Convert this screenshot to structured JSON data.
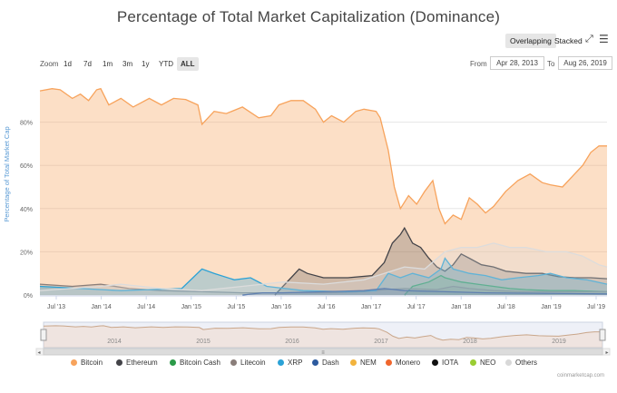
{
  "title": "Percentage of Total Market Capitalization (Dominance)",
  "modes": {
    "overlapping": "Overlapping",
    "stacked": "Stacked"
  },
  "icons": {
    "fullscreen": "fullscreen-icon",
    "menu": "menu-icon"
  },
  "zoom": {
    "label": "Zoom",
    "buttons": [
      "1d",
      "7d",
      "1m",
      "3m",
      "1y",
      "YTD",
      "ALL"
    ],
    "active": "ALL"
  },
  "range": {
    "from_label": "From",
    "from_value": "Apr 28, 2013",
    "to_label": "To",
    "to_value": "Aug 26, 2019"
  },
  "navigator": {
    "years": [
      "2014",
      "2015",
      "2016",
      "2017",
      "2018",
      "2019"
    ]
  },
  "credit": "coinmarketcap.com",
  "chart_data": {
    "type": "area",
    "title": "Percentage of Total Market Capitalization (Dominance)",
    "ylabel": "Percentage of Total Market Cap",
    "xlabel": "",
    "ylim": [
      0,
      100
    ],
    "yticks": [
      "0%",
      "20%",
      "40%",
      "60%",
      "80%"
    ],
    "xticks": [
      "Jul '13",
      "Jan '14",
      "Jul '14",
      "Jan '15",
      "Jul '15",
      "Jan '16",
      "Jul '16",
      "Jan '17",
      "Jul '17",
      "Jan '18",
      "Jul '18",
      "Jan '19",
      "Jul '19"
    ],
    "grid": true,
    "legend_position": "bottom",
    "series": [
      {
        "name": "Bitcoin",
        "color": "#f7a35c",
        "fill": "rgba(247,163,92,0.35)",
        "points": [
          [
            0,
            94.5
          ],
          [
            0.3,
            95.5
          ],
          [
            0.5,
            95
          ],
          [
            0.8,
            91
          ],
          [
            1.0,
            93
          ],
          [
            1.2,
            90
          ],
          [
            1.4,
            95
          ],
          [
            1.5,
            95.5
          ],
          [
            1.7,
            88
          ],
          [
            2.0,
            91
          ],
          [
            2.3,
            87
          ],
          [
            2.7,
            91
          ],
          [
            3.0,
            88
          ],
          [
            3.3,
            91
          ],
          [
            3.6,
            90.5
          ],
          [
            3.9,
            88
          ],
          [
            4.0,
            79
          ],
          [
            4.3,
            85
          ],
          [
            4.6,
            84
          ],
          [
            5.0,
            87
          ],
          [
            5.4,
            82
          ],
          [
            5.7,
            83
          ],
          [
            5.9,
            88
          ],
          [
            6.2,
            90
          ],
          [
            6.5,
            90
          ],
          [
            6.8,
            86
          ],
          [
            7.0,
            80
          ],
          [
            7.2,
            83
          ],
          [
            7.5,
            80
          ],
          [
            7.8,
            85
          ],
          [
            8.0,
            86
          ],
          [
            8.3,
            85
          ],
          [
            8.4,
            82
          ],
          [
            8.6,
            67
          ],
          [
            8.75,
            50
          ],
          [
            8.9,
            40
          ],
          [
            9.1,
            46
          ],
          [
            9.3,
            42
          ],
          [
            9.5,
            48
          ],
          [
            9.7,
            53
          ],
          [
            9.85,
            40
          ],
          [
            10.0,
            33
          ],
          [
            10.2,
            37
          ],
          [
            10.4,
            35
          ],
          [
            10.6,
            45
          ],
          [
            10.8,
            42
          ],
          [
            11.0,
            38
          ],
          [
            11.2,
            41
          ],
          [
            11.5,
            48
          ],
          [
            11.8,
            53
          ],
          [
            12.1,
            56
          ],
          [
            12.4,
            52
          ],
          [
            12.6,
            51
          ],
          [
            12.9,
            50
          ],
          [
            13.2,
            56
          ],
          [
            13.4,
            60
          ],
          [
            13.6,
            66
          ],
          [
            13.8,
            69
          ],
          [
            14.0,
            69
          ]
        ]
      },
      {
        "name": "Ethereum",
        "color": "#434348",
        "fill": "rgba(67,67,72,0.25)",
        "points": [
          [
            5.8,
            0
          ],
          [
            6.2,
            8
          ],
          [
            6.4,
            12
          ],
          [
            6.6,
            10
          ],
          [
            7.0,
            8
          ],
          [
            7.6,
            8
          ],
          [
            8.2,
            9
          ],
          [
            8.5,
            15
          ],
          [
            8.7,
            24
          ],
          [
            8.9,
            28
          ],
          [
            9.0,
            31
          ],
          [
            9.2,
            24
          ],
          [
            9.4,
            22
          ],
          [
            9.6,
            17
          ],
          [
            9.8,
            13
          ],
          [
            10.0,
            11
          ],
          [
            10.2,
            14
          ],
          [
            10.4,
            19
          ],
          [
            10.6,
            17
          ],
          [
            10.9,
            14
          ],
          [
            11.2,
            13
          ],
          [
            11.5,
            11
          ],
          [
            12.0,
            10
          ],
          [
            12.4,
            10
          ],
          [
            12.8,
            8.5
          ],
          [
            13.2,
            8
          ],
          [
            13.6,
            8
          ],
          [
            14.0,
            7.5
          ]
        ]
      },
      {
        "name": "Bitcoin Cash",
        "color": "#2b9a48",
        "fill": "rgba(43,154,72,0.20)",
        "points": [
          [
            9.0,
            0
          ],
          [
            9.2,
            4
          ],
          [
            9.6,
            6
          ],
          [
            9.9,
            9
          ],
          [
            10.0,
            8
          ],
          [
            10.4,
            6
          ],
          [
            10.8,
            5
          ],
          [
            11.2,
            4
          ],
          [
            11.6,
            3
          ],
          [
            12.0,
            2.5
          ],
          [
            12.6,
            2
          ],
          [
            13.2,
            2
          ],
          [
            14.0,
            1.5
          ]
        ]
      },
      {
        "name": "Litecoin",
        "color": "#8a7e7a",
        "fill": "rgba(138,126,122,0.25)",
        "points": [
          [
            0,
            5
          ],
          [
            0.8,
            4
          ],
          [
            1.5,
            5
          ],
          [
            2.2,
            3
          ],
          [
            3.0,
            2
          ],
          [
            4.0,
            1.5
          ],
          [
            5.0,
            1
          ],
          [
            6.0,
            1
          ],
          [
            7.0,
            1
          ],
          [
            8.0,
            1.5
          ],
          [
            8.5,
            2.5
          ],
          [
            9.0,
            3
          ],
          [
            9.8,
            2.5
          ],
          [
            10.2,
            4
          ],
          [
            10.6,
            3
          ],
          [
            11.2,
            2
          ],
          [
            12.0,
            1.5
          ],
          [
            13.0,
            1.5
          ],
          [
            14.0,
            1.5
          ]
        ]
      },
      {
        "name": "XRP",
        "color": "#2ba2d6",
        "fill": "rgba(43,162,214,0.30)",
        "points": [
          [
            0,
            4
          ],
          [
            1.0,
            3
          ],
          [
            2.0,
            2
          ],
          [
            3.5,
            3
          ],
          [
            4.0,
            12
          ],
          [
            4.3,
            10
          ],
          [
            4.8,
            7
          ],
          [
            5.2,
            8
          ],
          [
            5.6,
            4
          ],
          [
            6.5,
            2
          ],
          [
            7.5,
            1.5
          ],
          [
            8.3,
            2
          ],
          [
            8.6,
            10
          ],
          [
            8.9,
            8
          ],
          [
            9.2,
            10
          ],
          [
            9.6,
            8
          ],
          [
            9.9,
            12
          ],
          [
            10.0,
            17
          ],
          [
            10.2,
            12
          ],
          [
            10.6,
            10
          ],
          [
            11.0,
            9
          ],
          [
            11.4,
            7
          ],
          [
            11.8,
            8
          ],
          [
            12.3,
            9
          ],
          [
            12.6,
            10
          ],
          [
            13.0,
            8
          ],
          [
            13.5,
            7
          ],
          [
            14.0,
            5
          ]
        ]
      },
      {
        "name": "Dash",
        "color": "#2c5a9e",
        "fill": "rgba(44,90,158,0.20)",
        "points": [
          [
            5.0,
            0
          ],
          [
            5.5,
            1
          ],
          [
            6.0,
            1
          ],
          [
            7.0,
            1.5
          ],
          [
            8.0,
            2
          ],
          [
            8.5,
            3
          ],
          [
            9.0,
            2
          ],
          [
            10.0,
            1.5
          ],
          [
            11.0,
            1
          ],
          [
            14.0,
            0.5
          ]
        ]
      },
      {
        "name": "Others",
        "color": "#dcdcdc",
        "fill": "rgba(220,220,220,0.30)",
        "points": [
          [
            0,
            2
          ],
          [
            1.5,
            4
          ],
          [
            2.0,
            5
          ],
          [
            3.0,
            3
          ],
          [
            4.0,
            2
          ],
          [
            5.0,
            4
          ],
          [
            6.0,
            6
          ],
          [
            7.0,
            5
          ],
          [
            8.0,
            7
          ],
          [
            8.5,
            10
          ],
          [
            9.0,
            13
          ],
          [
            9.5,
            12
          ],
          [
            10.0,
            20
          ],
          [
            10.4,
            22
          ],
          [
            10.8,
            22
          ],
          [
            11.2,
            24
          ],
          [
            11.6,
            22
          ],
          [
            12.0,
            22
          ],
          [
            12.5,
            20
          ],
          [
            13.0,
            20
          ],
          [
            13.4,
            18
          ],
          [
            13.8,
            14
          ],
          [
            14.0,
            13
          ]
        ]
      }
    ],
    "legend": [
      {
        "name": "Bitcoin",
        "color": "#f7a35c"
      },
      {
        "name": "Ethereum",
        "color": "#434348"
      },
      {
        "name": "Bitcoin Cash",
        "color": "#2b9a48"
      },
      {
        "name": "Litecoin",
        "color": "#8a7e7a"
      },
      {
        "name": "XRP",
        "color": "#2ba2d6"
      },
      {
        "name": "Dash",
        "color": "#2c5a9e"
      },
      {
        "name": "NEM",
        "color": "#f2b33d"
      },
      {
        "name": "Monero",
        "color": "#f0662d"
      },
      {
        "name": "IOTA",
        "color": "#111111"
      },
      {
        "name": "NEO",
        "color": "#9acd32"
      },
      {
        "name": "Others",
        "color": "#d8d8d8"
      }
    ]
  }
}
